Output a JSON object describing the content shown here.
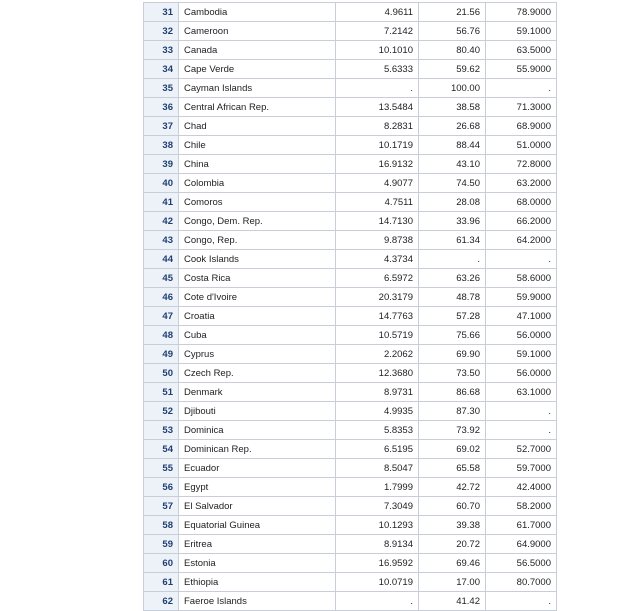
{
  "table": {
    "rows": [
      {
        "obs": "31",
        "country": "Cambodia",
        "v1": "4.9611",
        "v2": "21.56",
        "v3": "78.9000"
      },
      {
        "obs": "32",
        "country": "Cameroon",
        "v1": "7.2142",
        "v2": "56.76",
        "v3": "59.1000"
      },
      {
        "obs": "33",
        "country": "Canada",
        "v1": "10.1010",
        "v2": "80.40",
        "v3": "63.5000"
      },
      {
        "obs": "34",
        "country": "Cape Verde",
        "v1": "5.6333",
        "v2": "59.62",
        "v3": "55.9000"
      },
      {
        "obs": "35",
        "country": "Cayman Islands",
        "v1": ".",
        "v2": "100.00",
        "v3": "."
      },
      {
        "obs": "36",
        "country": "Central African Rep.",
        "v1": "13.5484",
        "v2": "38.58",
        "v3": "71.3000"
      },
      {
        "obs": "37",
        "country": "Chad",
        "v1": "8.2831",
        "v2": "26.68",
        "v3": "68.9000"
      },
      {
        "obs": "38",
        "country": "Chile",
        "v1": "10.1719",
        "v2": "88.44",
        "v3": "51.0000"
      },
      {
        "obs": "39",
        "country": "China",
        "v1": "16.9132",
        "v2": "43.10",
        "v3": "72.8000"
      },
      {
        "obs": "40",
        "country": "Colombia",
        "v1": "4.9077",
        "v2": "74.50",
        "v3": "63.2000"
      },
      {
        "obs": "41",
        "country": "Comoros",
        "v1": "4.7511",
        "v2": "28.08",
        "v3": "68.0000"
      },
      {
        "obs": "42",
        "country": "Congo, Dem. Rep.",
        "v1": "14.7130",
        "v2": "33.96",
        "v3": "66.2000"
      },
      {
        "obs": "43",
        "country": "Congo, Rep.",
        "v1": "9.8738",
        "v2": "61.34",
        "v3": "64.2000"
      },
      {
        "obs": "44",
        "country": "Cook Islands",
        "v1": "4.3734",
        "v2": ".",
        "v3": "."
      },
      {
        "obs": "45",
        "country": "Costa Rica",
        "v1": "6.5972",
        "v2": "63.26",
        "v3": "58.6000"
      },
      {
        "obs": "46",
        "country": "Cote d'Ivoire",
        "v1": "20.3179",
        "v2": "48.78",
        "v3": "59.9000"
      },
      {
        "obs": "47",
        "country": "Croatia",
        "v1": "14.7763",
        "v2": "57.28",
        "v3": "47.1000"
      },
      {
        "obs": "48",
        "country": "Cuba",
        "v1": "10.5719",
        "v2": "75.66",
        "v3": "56.0000"
      },
      {
        "obs": "49",
        "country": "Cyprus",
        "v1": "2.2062",
        "v2": "69.90",
        "v3": "59.1000"
      },
      {
        "obs": "50",
        "country": "Czech Rep.",
        "v1": "12.3680",
        "v2": "73.50",
        "v3": "56.0000"
      },
      {
        "obs": "51",
        "country": "Denmark",
        "v1": "8.9731",
        "v2": "86.68",
        "v3": "63.1000"
      },
      {
        "obs": "52",
        "country": "Djibouti",
        "v1": "4.9935",
        "v2": "87.30",
        "v3": "."
      },
      {
        "obs": "53",
        "country": "Dominica",
        "v1": "5.8353",
        "v2": "73.92",
        "v3": "."
      },
      {
        "obs": "54",
        "country": "Dominican Rep.",
        "v1": "6.5195",
        "v2": "69.02",
        "v3": "52.7000"
      },
      {
        "obs": "55",
        "country": "Ecuador",
        "v1": "8.5047",
        "v2": "65.58",
        "v3": "59.7000"
      },
      {
        "obs": "56",
        "country": "Egypt",
        "v1": "1.7999",
        "v2": "42.72",
        "v3": "42.4000"
      },
      {
        "obs": "57",
        "country": "El Salvador",
        "v1": "7.3049",
        "v2": "60.70",
        "v3": "58.2000"
      },
      {
        "obs": "58",
        "country": "Equatorial Guinea",
        "v1": "10.1293",
        "v2": "39.38",
        "v3": "61.7000"
      },
      {
        "obs": "59",
        "country": "Eritrea",
        "v1": "8.9134",
        "v2": "20.72",
        "v3": "64.9000"
      },
      {
        "obs": "60",
        "country": "Estonia",
        "v1": "16.9592",
        "v2": "69.46",
        "v3": "56.5000"
      },
      {
        "obs": "61",
        "country": "Ethiopia",
        "v1": "10.0719",
        "v2": "17.00",
        "v3": "80.7000"
      },
      {
        "obs": "62",
        "country": "Faeroe Islands",
        "v1": ".",
        "v2": "41.42",
        "v3": "."
      }
    ]
  },
  "colors": {
    "obs_background": "#edf2f9",
    "obs_text": "#1e3f72",
    "grid_line": "#c7ced8",
    "cell_text": "#222222"
  }
}
